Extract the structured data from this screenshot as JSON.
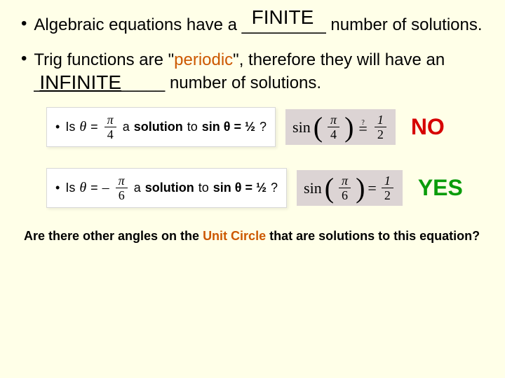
{
  "colors": {
    "background": "#ffffe8",
    "accent_orange": "#cc5800",
    "verdict_no": "#d60000",
    "verdict_yes": "#0a9c0a",
    "shaded_box_bg": "#dcd4d4"
  },
  "fonts": {
    "body": "Comic Sans MS",
    "math": "Times New Roman",
    "answers": "Arial"
  },
  "bullet1": {
    "pre": "Algebraic equations have a ",
    "blank": "_________",
    "answer": "FINITE",
    "post": " number of solutions."
  },
  "bullet2": {
    "pre": "Trig functions are \"",
    "periodic": "periodic",
    "mid": "\", therefore they will have an ",
    "blank": "______________",
    "answer": "INFINITE",
    "post": " number of solutions."
  },
  "eq_rows": [
    {
      "is_label": "Is",
      "theta": "θ",
      "eq": "=",
      "frac_num": "π",
      "frac_den": "4",
      "neg": "",
      "solution_text_a": "a ",
      "solution_text_b": "solution",
      "solution_text_c": " to ",
      "sin_expr": "sin θ = ½",
      "q": "?",
      "sin_label": "sin",
      "big_frac_num": "π",
      "big_frac_den": "4",
      "qmark": "?",
      "rhs_num": "1",
      "rhs_den": "2",
      "verdict": "NO",
      "verdict_class": "no"
    },
    {
      "is_label": "Is",
      "theta": "θ",
      "eq": "=",
      "neg": "–",
      "frac_num": "π",
      "frac_den": "6",
      "solution_text_a": "a ",
      "solution_text_b": "solution",
      "solution_text_c": " to ",
      "sin_expr": "sin θ = ½",
      "q": "?",
      "sin_label": "sin",
      "big_frac_num": "π",
      "big_frac_den": "6",
      "qmark": "",
      "rhs_num": "1",
      "rhs_den": "2",
      "verdict": "YES",
      "verdict_class": "yes"
    }
  ],
  "bottom": {
    "pre": "Are there other angles on the ",
    "unit_circle": "Unit Circle",
    "post": " that are  solutions to this equation?"
  }
}
